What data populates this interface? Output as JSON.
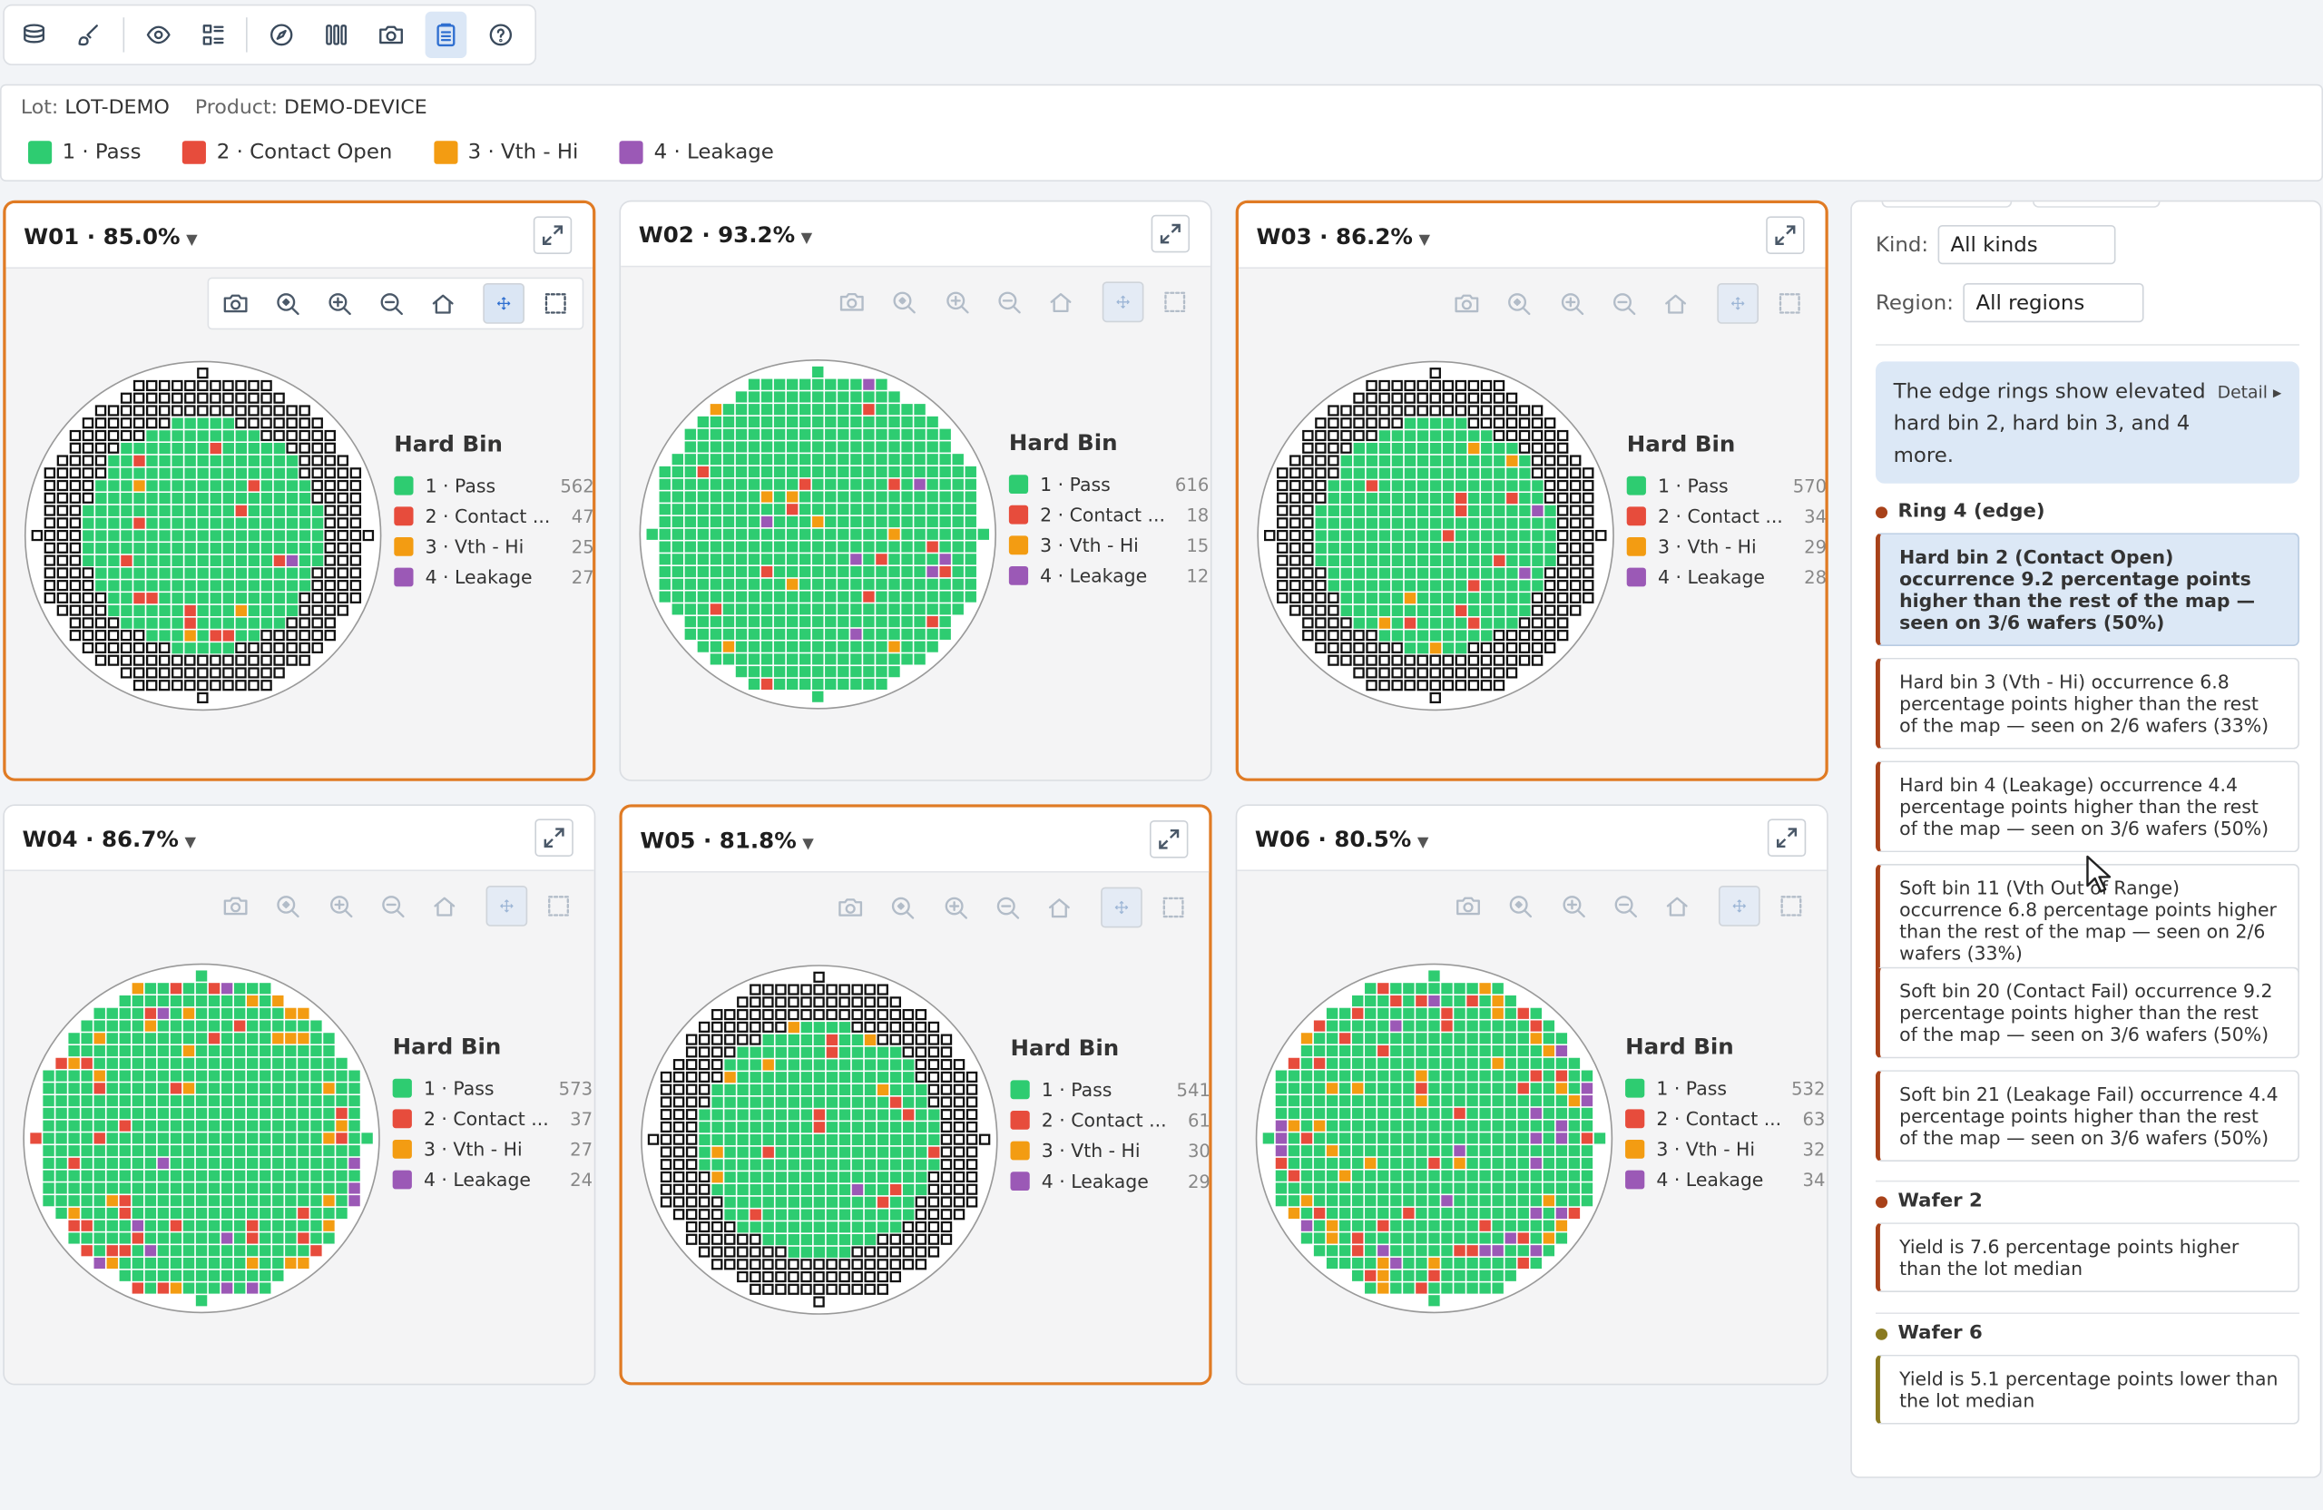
{
  "toolbar": {
    "items": [
      {
        "name": "layers-icon"
      },
      {
        "name": "brush-icon"
      },
      {
        "sep": true
      },
      {
        "name": "eye-icon"
      },
      {
        "name": "list-icon"
      },
      {
        "sep": true
      },
      {
        "name": "compass-icon"
      },
      {
        "name": "columns-icon"
      },
      {
        "name": "camera-icon"
      },
      {
        "name": "clipboard-icon",
        "active": true
      },
      {
        "name": "help-icon"
      }
    ]
  },
  "lot": {
    "lot_label": "Lot:",
    "lot": "LOT-DEMO",
    "product_label": "Product:",
    "product": "DEMO-DEVICE"
  },
  "legend": [
    {
      "label": "1 · Pass",
      "color": "#2ecc71"
    },
    {
      "label": "2 · Contact Open",
      "color": "#e74c3c"
    },
    {
      "label": "3 · Vth - Hi",
      "color": "#f39c12"
    },
    {
      "label": "4 · Leakage",
      "color": "#9b59b6"
    }
  ],
  "panel_common": {
    "hard_bin_title": "Hard Bin",
    "bins": [
      "1 · Pass",
      "2 · Contact ...",
      "3 · Vth - Hi",
      "4 · Leakage"
    ]
  },
  "wafers": [
    {
      "title": "W01 · 85.0%",
      "counts": [
        "562",
        "47",
        "25",
        "27"
      ],
      "highlight": true,
      "toolbar_active": true,
      "ring": true,
      "edge_defects": false,
      "seed": 11
    },
    {
      "title": "W02 · 93.2%",
      "counts": [
        "616",
        "18",
        "15",
        "12"
      ],
      "highlight": false,
      "toolbar_active": false,
      "ring": false,
      "edge_defects": false,
      "seed": 23
    },
    {
      "title": "W03 · 86.2%",
      "counts": [
        "570",
        "34",
        "29",
        "28"
      ],
      "highlight": true,
      "toolbar_active": false,
      "ring": true,
      "edge_defects": false,
      "seed": 37
    },
    {
      "title": "W04 · 86.7%",
      "counts": [
        "573",
        "37",
        "27",
        "24"
      ],
      "highlight": false,
      "toolbar_active": false,
      "ring": false,
      "edge_defects": true,
      "seed": 41
    },
    {
      "title": "W05 · 81.8%",
      "counts": [
        "541",
        "61",
        "30",
        "29"
      ],
      "highlight": true,
      "toolbar_active": false,
      "ring": true,
      "edge_defects": false,
      "seed": 53
    },
    {
      "title": "W06 · 80.5%",
      "counts": [
        "532",
        "63",
        "32",
        "34"
      ],
      "highlight": false,
      "toolbar_active": false,
      "ring": false,
      "edge_defects": true,
      "seed": 67
    }
  ],
  "side": {
    "kind_label": "Kind:",
    "kind_value": "All kinds",
    "region_label": "Region:",
    "region_value": "All regions",
    "summary": "The edge rings show elevated hard bin 2, hard bin 3, and 4 more.",
    "detail": "Detail ▸",
    "groups": [
      {
        "title": "Ring 4 (edge)",
        "color": "#a8421a",
        "cards": [
          "Hard bin 2 (Contact Open) occurrence 9.2 percentage points higher than the rest of the map — seen on 3/6 wafers (50%)",
          "Hard bin 3 (Vth - Hi) occurrence 6.8 percentage points higher than the rest of the map — seen on 2/6 wafers (33%)",
          "Hard bin 4 (Leakage) occurrence 4.4 percentage points higher than the rest of the map — seen on 3/6 wafers (50%)",
          "Soft bin 11 (Vth Out of Range) occurrence 6.8 percentage points higher than the rest of the map — seen on 2/6 wafers (33%)",
          "Soft bin 20 (Contact Fail) occurrence 9.2 percentage points higher than the rest of the map — seen on 3/6 wafers (50%)",
          "Soft bin 21 (Leakage Fail) occurrence 4.4 percentage points higher than the rest of the map — seen on 3/6 wafers (50%)"
        ]
      },
      {
        "title": "Wafer 2",
        "color": "#a8421a",
        "cards": [
          "Yield is 7.6 percentage points higher than the lot median"
        ]
      },
      {
        "title": "Wafer 6",
        "color": "#8a7a20",
        "cards": [
          "Yield is 5.1 percentage points lower than the lot median"
        ]
      }
    ]
  }
}
